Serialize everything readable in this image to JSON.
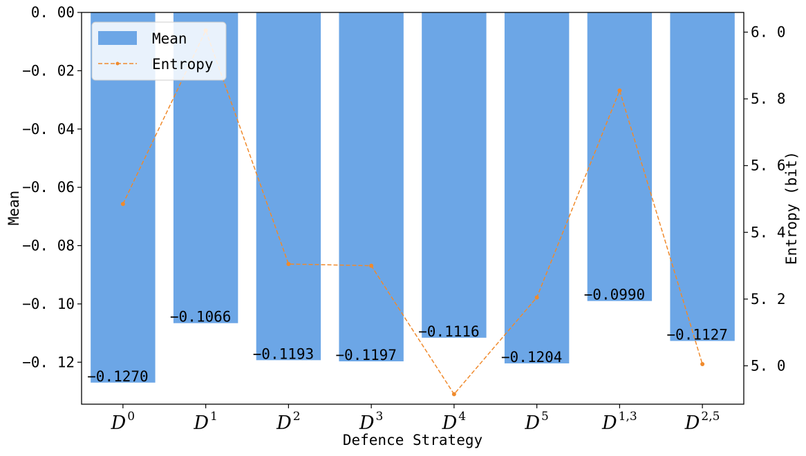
{
  "chart_data": {
    "type": "bar",
    "xlabel": "Defence Strategy",
    "ylabel": "Mean",
    "y2label": "Entropy (bit)",
    "categories": [
      {
        "base": "D",
        "sup": "0"
      },
      {
        "base": "D",
        "sup": "1"
      },
      {
        "base": "D",
        "sup": "2"
      },
      {
        "base": "D",
        "sup": "3"
      },
      {
        "base": "D",
        "sup": "4"
      },
      {
        "base": "D",
        "sup": "5"
      },
      {
        "base": "D",
        "sup": "1,3"
      },
      {
        "base": "D",
        "sup": "2,5"
      }
    ],
    "series": [
      {
        "name": "Mean",
        "kind": "bar",
        "axis": "left",
        "color": "#6ca6e6",
        "values": [
          -0.127,
          -0.1066,
          -0.1193,
          -0.1197,
          -0.1116,
          -0.1204,
          -0.099,
          -0.1127
        ],
        "labels": [
          "−0.1270",
          "−0.1066",
          "−0.1193",
          "−0.1197",
          "−0.1116",
          "−0.1204",
          "−0.0990",
          "−0.1127"
        ]
      },
      {
        "name": "Entropy",
        "kind": "line",
        "axis": "right",
        "color": "#f08a2c",
        "line_style": "dashed",
        "marker": "dot",
        "values": [
          5.485,
          6.005,
          5.305,
          5.3,
          4.915,
          5.205,
          5.825,
          5.005
        ]
      }
    ],
    "ylim": [
      -0.1344,
      0.0
    ],
    "y_ticks": [
      0.0,
      -0.02,
      -0.04,
      -0.06,
      -0.08,
      -0.1,
      -0.12
    ],
    "y_tick_labels": [
      "0. 00",
      "−0. 02",
      "−0. 04",
      "−0. 06",
      "−0. 08",
      "−0. 10",
      "−0. 12"
    ],
    "y2lim": [
      4.885,
      6.059
    ],
    "y2_ticks": [
      5.0,
      5.2,
      5.4,
      5.6,
      5.8,
      6.0
    ],
    "y2_tick_labels": [
      "5. 0",
      "5. 2",
      "5. 4",
      "5. 6",
      "5. 8",
      "6. 0"
    ],
    "legend": {
      "position": "top-left",
      "entries": [
        "Mean",
        "Entropy"
      ]
    },
    "grid": false
  }
}
